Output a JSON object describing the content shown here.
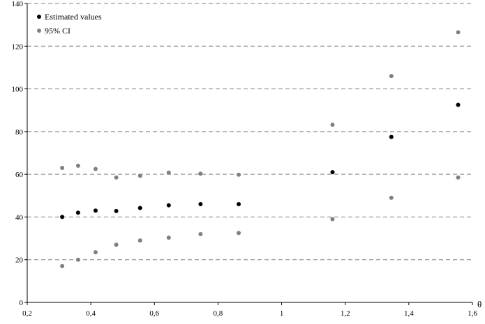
{
  "chart_data": {
    "type": "scatter",
    "title": "",
    "xlabel": "θ",
    "ylabel": "",
    "xlim": [
      0.2,
      1.6
    ],
    "ylim": [
      0,
      140
    ],
    "xticks": [
      0.2,
      0.4,
      0.6,
      0.8,
      1.0,
      1.2,
      1.4,
      1.6
    ],
    "xtick_labels": [
      "0,2",
      "0,4",
      "0,6",
      "0,8",
      "1",
      "1,2",
      "1,4",
      "1,6"
    ],
    "yticks": [
      0,
      20,
      40,
      60,
      80,
      100,
      120,
      140
    ],
    "ytick_labels": [
      "0",
      "20",
      "40",
      "60",
      "80",
      "100",
      "120",
      "140"
    ],
    "grid": "horizontal dashed",
    "legend_position": "top-left",
    "series": [
      {
        "name": "Estimated values",
        "color": "#000000",
        "points": [
          [
            0.31,
            40
          ],
          [
            0.36,
            42
          ],
          [
            0.415,
            43
          ],
          [
            0.48,
            42.8
          ],
          [
            0.555,
            44.2
          ],
          [
            0.645,
            45.5
          ],
          [
            0.745,
            46
          ],
          [
            0.865,
            46
          ],
          [
            1.16,
            61
          ],
          [
            1.345,
            77.5
          ],
          [
            1.555,
            92.5
          ]
        ]
      },
      {
        "name": "95% CI",
        "color": "#808080",
        "points": [
          [
            0.31,
            63
          ],
          [
            0.36,
            64
          ],
          [
            0.415,
            62.5
          ],
          [
            0.48,
            58.5
          ],
          [
            0.555,
            59.3
          ],
          [
            0.645,
            60.8
          ],
          [
            0.745,
            60.3
          ],
          [
            0.865,
            59.8
          ],
          [
            1.16,
            83.2
          ],
          [
            1.345,
            106
          ],
          [
            1.555,
            126.5
          ],
          [
            0.31,
            17
          ],
          [
            0.36,
            20
          ],
          [
            0.415,
            23.5
          ],
          [
            0.48,
            27
          ],
          [
            0.555,
            29
          ],
          [
            0.645,
            30.3
          ],
          [
            0.745,
            32
          ],
          [
            0.865,
            32.5
          ],
          [
            1.16,
            39
          ],
          [
            1.345,
            49
          ],
          [
            1.555,
            58.5
          ]
        ]
      }
    ]
  }
}
